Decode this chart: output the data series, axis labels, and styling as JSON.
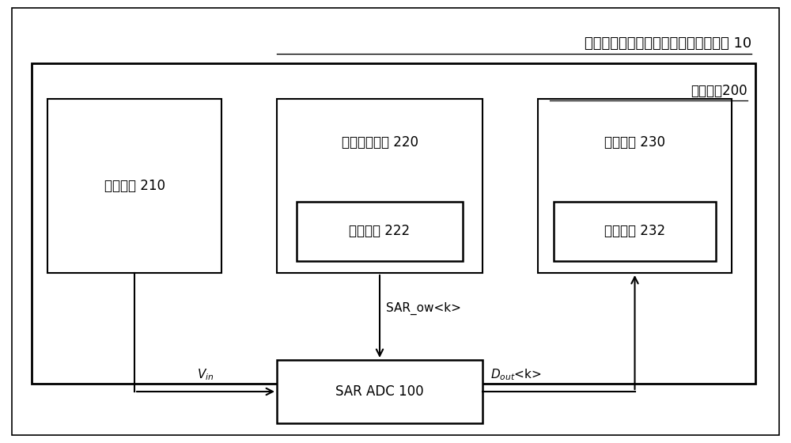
{
  "title": "具有内置自检测功能的模拟数字转换器 10",
  "outer_box_label": "测试电路200",
  "box1_label": "输入单元 210",
  "box2_label": "转换控制单元 220",
  "box2_sub_label": "设置电路 222",
  "box3_label": "判断单元 230",
  "box3_sub_label": "存储模块 232",
  "adc_label": "SAR ADC 100",
  "signal_sar": "SAR_ow<k>",
  "bg_color": "#ffffff",
  "box_color": "#000000",
  "text_color": "#000000",
  "font_size_title": 13,
  "font_size_label": 12,
  "font_size_small": 11,
  "fig_width": 10.0,
  "fig_height": 5.6,
  "dpi": 100
}
